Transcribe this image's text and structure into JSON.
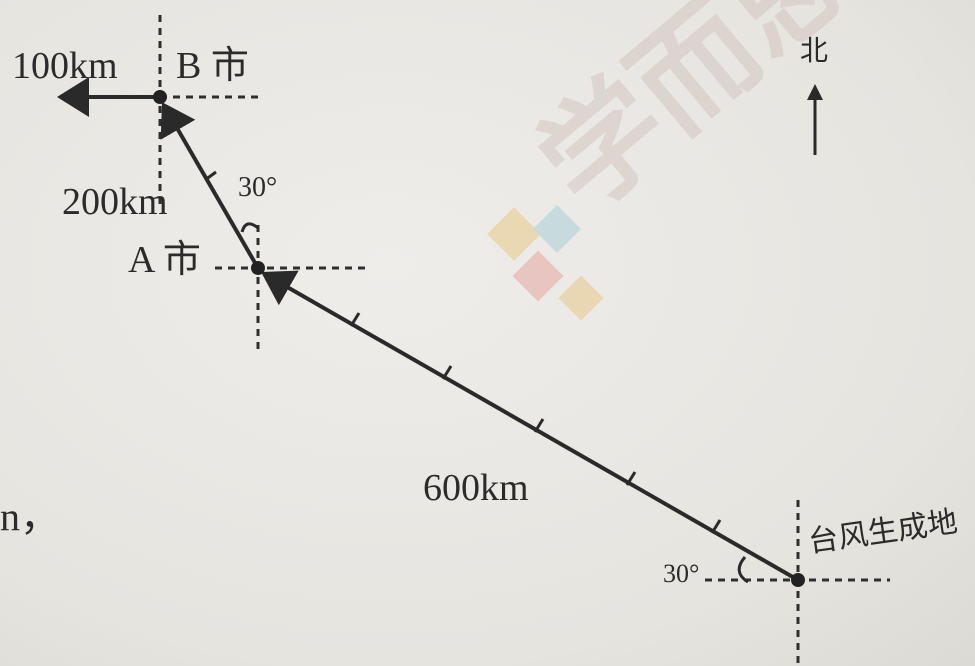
{
  "labels": {
    "b_city": "B 市",
    "a_city": "A 市",
    "origin": "台风生成地",
    "north": "北",
    "dist_west": "100km",
    "dist_ab": "200km",
    "dist_main": "600km",
    "angle_a": "30°",
    "angle_origin": "30°",
    "edge_text": "n，",
    "watermark": "学而思"
  },
  "colors": {
    "ink": "#2a2a2a",
    "paper": "#e9e7e2",
    "watermark": "#d4c6c2"
  }
}
